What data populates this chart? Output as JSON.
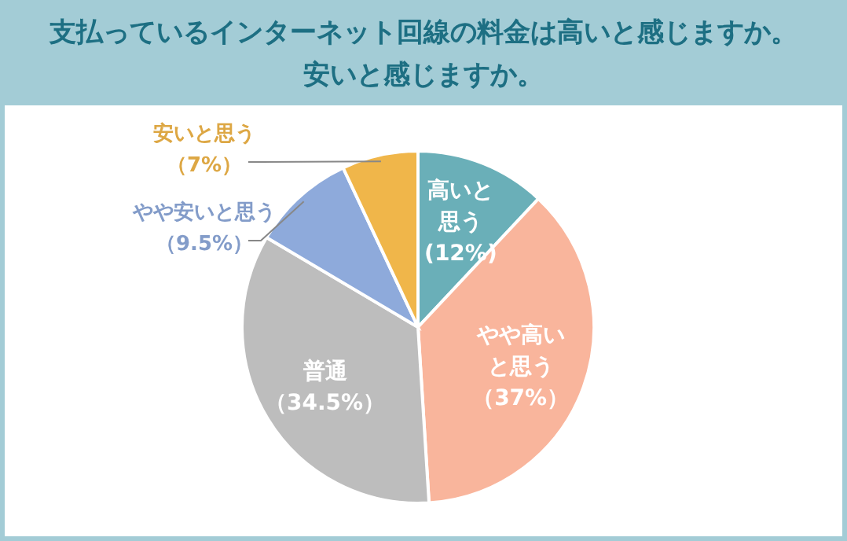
{
  "chart_data": {
    "type": "pie",
    "title": "支払っているインターネット回線の料金は高いと感じますか。安いと感じますか。",
    "categories": [
      "高いと思う",
      "やや高いと思う",
      "普通",
      "やや安いと思う",
      "安いと思う"
    ],
    "values": [
      12,
      37,
      34.5,
      9.5,
      7
    ],
    "value_labels": [
      "(12%)",
      "（37%）",
      "（34.5%）",
      "（9.5%）",
      "（7%）"
    ],
    "colors": [
      "#6aafb8",
      "#f9b59c",
      "#bdbdbd",
      "#8eaadb",
      "#f0b64a"
    ]
  }
}
